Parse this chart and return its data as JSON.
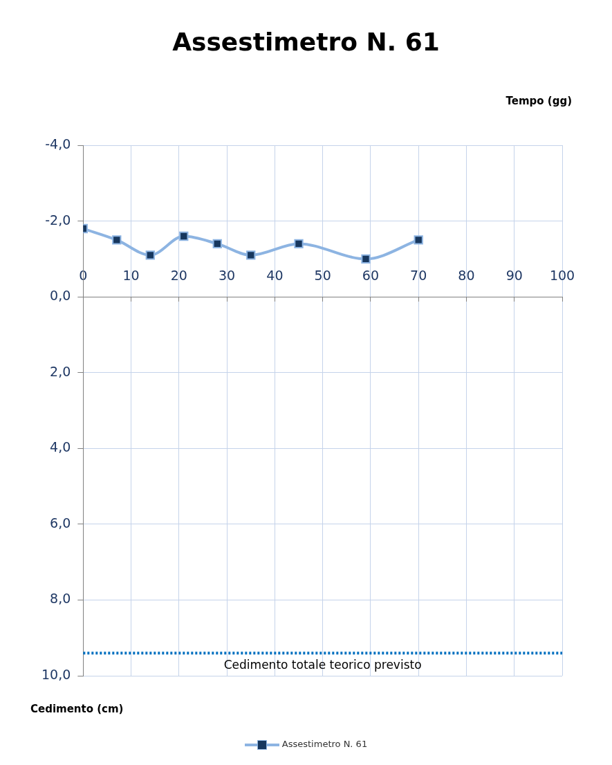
{
  "chart_data": {
    "type": "line",
    "title": "Assestimetro N. 61",
    "xlabel": "Tempo (gg)",
    "ylabel": "Cedimento (cm)",
    "x": [
      0,
      7,
      14,
      21,
      28,
      35,
      45,
      59,
      70
    ],
    "series": [
      {
        "name": "Assestimetro N. 61",
        "color": "#8db4e2",
        "values": [
          -1.8,
          -1.5,
          -1.1,
          -1.6,
          -1.4,
          -1.1,
          -1.4,
          -1.0,
          -1.5
        ]
      }
    ],
    "xlim": [
      0,
      100
    ],
    "xticks": [
      0,
      10,
      20,
      30,
      40,
      50,
      60,
      70,
      80,
      90,
      100
    ],
    "ylim": [
      10,
      -4
    ],
    "yticks": [
      {
        "value": -4,
        "label": "-4,0"
      },
      {
        "value": -2,
        "label": "-2,0"
      },
      {
        "value": 0,
        "label": "0,0"
      },
      {
        "value": 2,
        "label": "2,0"
      },
      {
        "value": 4,
        "label": "4,0"
      },
      {
        "value": 6,
        "label": "6,0"
      },
      {
        "value": 8,
        "label": "8,0"
      },
      {
        "value": 10,
        "label": "10,0"
      }
    ],
    "ref_lines": [
      {
        "axis": "y",
        "value": 9.4,
        "label": "Cedimento totale teorico previsto",
        "color": "#0070c0",
        "line_style": "dotted"
      }
    ],
    "grid": true,
    "legend": "bottom",
    "marker": "square",
    "line_style": "solid"
  }
}
